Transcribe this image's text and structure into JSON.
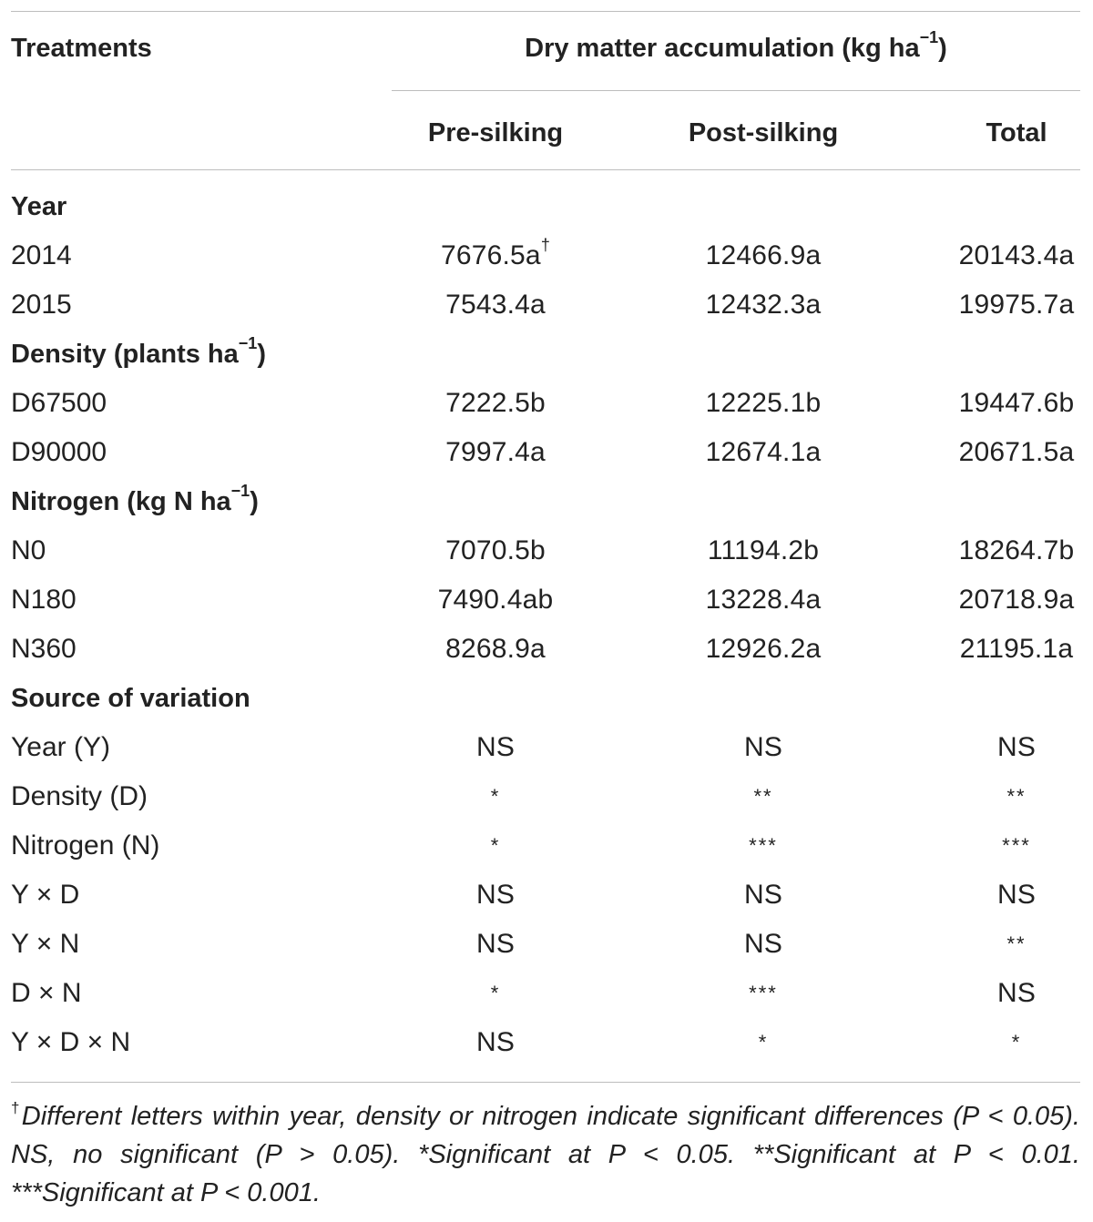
{
  "header": {
    "treatments": "Treatments",
    "group_title": "Dry matter accumulation (kg ha",
    "group_exponent": "−1",
    "group_close": ")",
    "columns": [
      "Pre-silking",
      "Post-silking",
      "Total"
    ]
  },
  "rows": [
    {
      "type": "section",
      "label": "Year"
    },
    {
      "type": "data",
      "label": "2014",
      "values": [
        "7676.5a",
        "12466.9a",
        "20143.4a"
      ],
      "marks": [
        "†",
        "",
        ""
      ]
    },
    {
      "type": "data",
      "label": "2015",
      "values": [
        "7543.4a",
        "12432.3a",
        "19975.7a"
      ],
      "marks": [
        "",
        "",
        ""
      ]
    },
    {
      "type": "section",
      "label": "Density (plants ha",
      "exponent": "−1",
      "close": ")"
    },
    {
      "type": "data",
      "label": "D67500",
      "values": [
        "7222.5b",
        "12225.1b",
        "19447.6b"
      ],
      "marks": [
        "",
        "",
        ""
      ]
    },
    {
      "type": "data",
      "label": "D90000",
      "values": [
        "7997.4a",
        "12674.1a",
        "20671.5a"
      ],
      "marks": [
        "",
        "",
        ""
      ]
    },
    {
      "type": "section",
      "label": "Nitrogen (kg N ha",
      "exponent": "−1",
      "close": ")"
    },
    {
      "type": "data",
      "label": "N0",
      "values": [
        "7070.5b",
        "11194.2b",
        "18264.7b"
      ],
      "marks": [
        "",
        "",
        ""
      ]
    },
    {
      "type": "data",
      "label": "N180",
      "values": [
        "7490.4ab",
        "13228.4a",
        "20718.9a"
      ],
      "marks": [
        "",
        "",
        ""
      ]
    },
    {
      "type": "data",
      "label": "N360",
      "values": [
        "8268.9a",
        "12926.2a",
        "21195.1a"
      ],
      "marks": [
        "",
        "",
        ""
      ]
    },
    {
      "type": "section",
      "label": "Source of variation"
    },
    {
      "type": "data",
      "label": "Year (Y)",
      "values": [
        "NS",
        "NS",
        "NS"
      ],
      "marks": [
        "",
        "",
        ""
      ]
    },
    {
      "type": "data",
      "label": "Density (D)",
      "values": [
        "*",
        "**",
        "**"
      ],
      "marks": [
        "",
        "",
        ""
      ]
    },
    {
      "type": "data",
      "label": "Nitrogen (N)",
      "values": [
        "*",
        "***",
        "***"
      ],
      "marks": [
        "",
        "",
        ""
      ]
    },
    {
      "type": "data",
      "label": "Y × D",
      "values": [
        "NS",
        "NS",
        "NS"
      ],
      "marks": [
        "",
        "",
        ""
      ]
    },
    {
      "type": "data",
      "label": "Y × N",
      "values": [
        "NS",
        "NS",
        "**"
      ],
      "marks": [
        "",
        "",
        ""
      ]
    },
    {
      "type": "data",
      "label": "D × N",
      "values": [
        "*",
        "***",
        "NS"
      ],
      "marks": [
        "",
        "",
        ""
      ]
    },
    {
      "type": "data",
      "label": "Y × D × N",
      "values": [
        "NS",
        "*",
        "*"
      ],
      "marks": [
        "",
        "",
        ""
      ]
    }
  ],
  "footnote": {
    "dagger": "†",
    "text": "Different letters within year, density or nitrogen indicate significant differences (P < 0.05). NS, no significant (P > 0.05). *Significant at P < 0.05. **Significant at P < 0.01. ***Significant at P < 0.001."
  }
}
